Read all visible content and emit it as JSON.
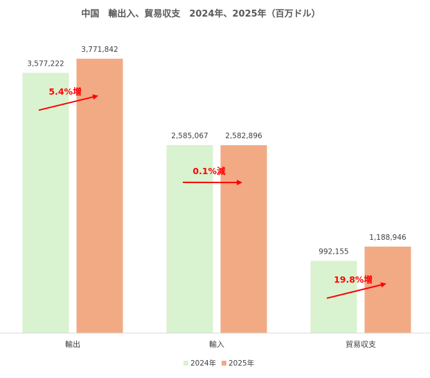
{
  "chart_data": {
    "type": "bar",
    "title": "中国　輸出入、貿易収支　2024年、2025年（百万ドル）",
    "categories": [
      "輸出",
      "輸入",
      "貿易収支"
    ],
    "series": [
      {
        "name": "2024年",
        "values": [
          3577222,
          2585067,
          992155
        ],
        "labels": [
          "3,577,222",
          "2,585,067",
          "992,155"
        ]
      },
      {
        "name": "2025年",
        "values": [
          3771842,
          2582896,
          1188946
        ],
        "labels": [
          "3,771,842",
          "2,582,896",
          "1,188,946"
        ]
      }
    ],
    "ylim": [
      0,
      3800000
    ],
    "grid": false,
    "legend": "bottom",
    "colors": {
      "2024年": "#d9f2d0",
      "2025年": "#f2aa84",
      "arrow": "#ff0000",
      "axis": "#d9d9d9"
    },
    "annotations": [
      "5.4%増",
      "0.1%減",
      "19.8%増"
    ]
  }
}
